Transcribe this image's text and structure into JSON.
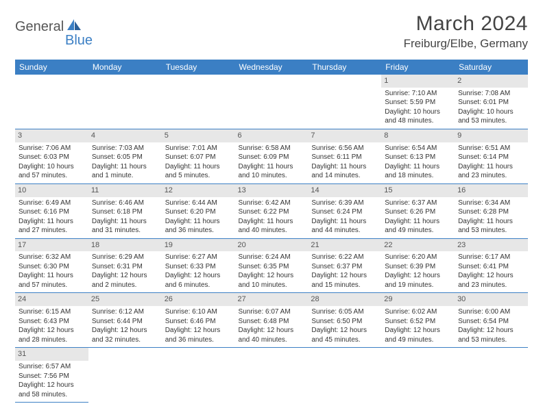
{
  "logo": {
    "part1": "General",
    "part2": "Blue"
  },
  "title": "March 2024",
  "location": "Freiburg/Elbe, Germany",
  "colors": {
    "header_bg": "#3b7fc4",
    "header_text": "#ffffff",
    "daynum_bg": "#e7e7e7",
    "row_border": "#3b7fc4",
    "body_text": "#333333",
    "logo_gray": "#555555",
    "logo_blue": "#3b7fc4"
  },
  "weekdays": [
    "Sunday",
    "Monday",
    "Tuesday",
    "Wednesday",
    "Thursday",
    "Friday",
    "Saturday"
  ],
  "weeks": [
    [
      null,
      null,
      null,
      null,
      null,
      {
        "n": "1",
        "r": "Sunrise: 7:10 AM",
        "s": "Sunset: 5:59 PM",
        "d1": "Daylight: 10 hours",
        "d2": "and 48 minutes."
      },
      {
        "n": "2",
        "r": "Sunrise: 7:08 AM",
        "s": "Sunset: 6:01 PM",
        "d1": "Daylight: 10 hours",
        "d2": "and 53 minutes."
      }
    ],
    [
      {
        "n": "3",
        "r": "Sunrise: 7:06 AM",
        "s": "Sunset: 6:03 PM",
        "d1": "Daylight: 10 hours",
        "d2": "and 57 minutes."
      },
      {
        "n": "4",
        "r": "Sunrise: 7:03 AM",
        "s": "Sunset: 6:05 PM",
        "d1": "Daylight: 11 hours",
        "d2": "and 1 minute."
      },
      {
        "n": "5",
        "r": "Sunrise: 7:01 AM",
        "s": "Sunset: 6:07 PM",
        "d1": "Daylight: 11 hours",
        "d2": "and 5 minutes."
      },
      {
        "n": "6",
        "r": "Sunrise: 6:58 AM",
        "s": "Sunset: 6:09 PM",
        "d1": "Daylight: 11 hours",
        "d2": "and 10 minutes."
      },
      {
        "n": "7",
        "r": "Sunrise: 6:56 AM",
        "s": "Sunset: 6:11 PM",
        "d1": "Daylight: 11 hours",
        "d2": "and 14 minutes."
      },
      {
        "n": "8",
        "r": "Sunrise: 6:54 AM",
        "s": "Sunset: 6:13 PM",
        "d1": "Daylight: 11 hours",
        "d2": "and 18 minutes."
      },
      {
        "n": "9",
        "r": "Sunrise: 6:51 AM",
        "s": "Sunset: 6:14 PM",
        "d1": "Daylight: 11 hours",
        "d2": "and 23 minutes."
      }
    ],
    [
      {
        "n": "10",
        "r": "Sunrise: 6:49 AM",
        "s": "Sunset: 6:16 PM",
        "d1": "Daylight: 11 hours",
        "d2": "and 27 minutes."
      },
      {
        "n": "11",
        "r": "Sunrise: 6:46 AM",
        "s": "Sunset: 6:18 PM",
        "d1": "Daylight: 11 hours",
        "d2": "and 31 minutes."
      },
      {
        "n": "12",
        "r": "Sunrise: 6:44 AM",
        "s": "Sunset: 6:20 PM",
        "d1": "Daylight: 11 hours",
        "d2": "and 36 minutes."
      },
      {
        "n": "13",
        "r": "Sunrise: 6:42 AM",
        "s": "Sunset: 6:22 PM",
        "d1": "Daylight: 11 hours",
        "d2": "and 40 minutes."
      },
      {
        "n": "14",
        "r": "Sunrise: 6:39 AM",
        "s": "Sunset: 6:24 PM",
        "d1": "Daylight: 11 hours",
        "d2": "and 44 minutes."
      },
      {
        "n": "15",
        "r": "Sunrise: 6:37 AM",
        "s": "Sunset: 6:26 PM",
        "d1": "Daylight: 11 hours",
        "d2": "and 49 minutes."
      },
      {
        "n": "16",
        "r": "Sunrise: 6:34 AM",
        "s": "Sunset: 6:28 PM",
        "d1": "Daylight: 11 hours",
        "d2": "and 53 minutes."
      }
    ],
    [
      {
        "n": "17",
        "r": "Sunrise: 6:32 AM",
        "s": "Sunset: 6:30 PM",
        "d1": "Daylight: 11 hours",
        "d2": "and 57 minutes."
      },
      {
        "n": "18",
        "r": "Sunrise: 6:29 AM",
        "s": "Sunset: 6:31 PM",
        "d1": "Daylight: 12 hours",
        "d2": "and 2 minutes."
      },
      {
        "n": "19",
        "r": "Sunrise: 6:27 AM",
        "s": "Sunset: 6:33 PM",
        "d1": "Daylight: 12 hours",
        "d2": "and 6 minutes."
      },
      {
        "n": "20",
        "r": "Sunrise: 6:24 AM",
        "s": "Sunset: 6:35 PM",
        "d1": "Daylight: 12 hours",
        "d2": "and 10 minutes."
      },
      {
        "n": "21",
        "r": "Sunrise: 6:22 AM",
        "s": "Sunset: 6:37 PM",
        "d1": "Daylight: 12 hours",
        "d2": "and 15 minutes."
      },
      {
        "n": "22",
        "r": "Sunrise: 6:20 AM",
        "s": "Sunset: 6:39 PM",
        "d1": "Daylight: 12 hours",
        "d2": "and 19 minutes."
      },
      {
        "n": "23",
        "r": "Sunrise: 6:17 AM",
        "s": "Sunset: 6:41 PM",
        "d1": "Daylight: 12 hours",
        "d2": "and 23 minutes."
      }
    ],
    [
      {
        "n": "24",
        "r": "Sunrise: 6:15 AM",
        "s": "Sunset: 6:43 PM",
        "d1": "Daylight: 12 hours",
        "d2": "and 28 minutes."
      },
      {
        "n": "25",
        "r": "Sunrise: 6:12 AM",
        "s": "Sunset: 6:44 PM",
        "d1": "Daylight: 12 hours",
        "d2": "and 32 minutes."
      },
      {
        "n": "26",
        "r": "Sunrise: 6:10 AM",
        "s": "Sunset: 6:46 PM",
        "d1": "Daylight: 12 hours",
        "d2": "and 36 minutes."
      },
      {
        "n": "27",
        "r": "Sunrise: 6:07 AM",
        "s": "Sunset: 6:48 PM",
        "d1": "Daylight: 12 hours",
        "d2": "and 40 minutes."
      },
      {
        "n": "28",
        "r": "Sunrise: 6:05 AM",
        "s": "Sunset: 6:50 PM",
        "d1": "Daylight: 12 hours",
        "d2": "and 45 minutes."
      },
      {
        "n": "29",
        "r": "Sunrise: 6:02 AM",
        "s": "Sunset: 6:52 PM",
        "d1": "Daylight: 12 hours",
        "d2": "and 49 minutes."
      },
      {
        "n": "30",
        "r": "Sunrise: 6:00 AM",
        "s": "Sunset: 6:54 PM",
        "d1": "Daylight: 12 hours",
        "d2": "and 53 minutes."
      }
    ],
    [
      {
        "n": "31",
        "r": "Sunrise: 6:57 AM",
        "s": "Sunset: 7:56 PM",
        "d1": "Daylight: 12 hours",
        "d2": "and 58 minutes."
      },
      null,
      null,
      null,
      null,
      null,
      null
    ]
  ]
}
